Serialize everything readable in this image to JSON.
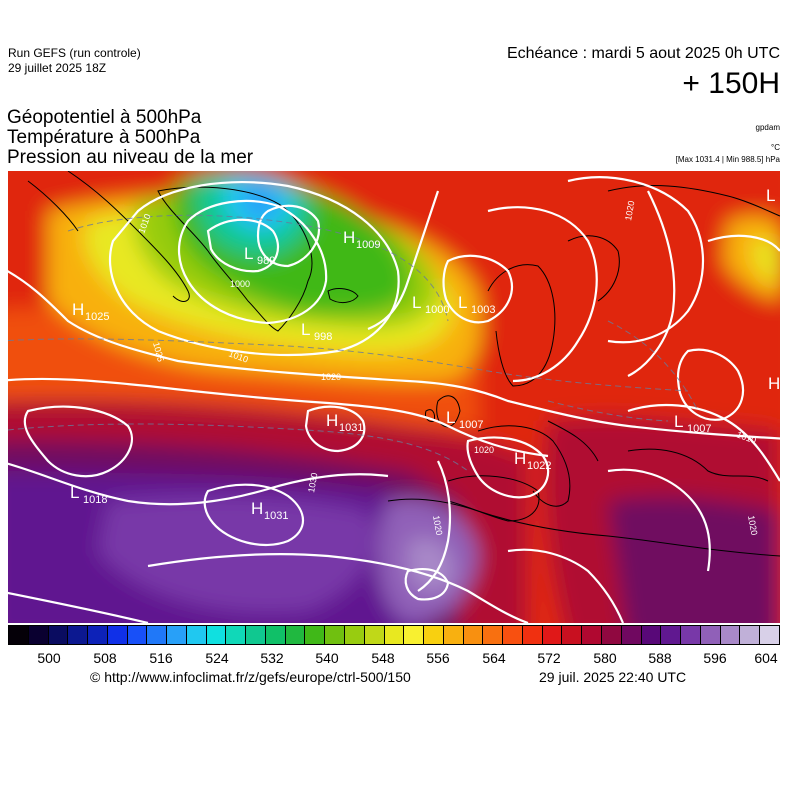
{
  "header": {
    "run_title": "Run GEFS (run controle)",
    "run_date": "29 juillet 2025 18Z",
    "echeance": "Echéance : mardi 5 aout 2025 0h UTC",
    "horizon": "+ 150H"
  },
  "parameters": {
    "line1": "Géopotentiel à 500hPa",
    "line2": "Température à 500hPa",
    "line3": "Pression au niveau de la mer",
    "unit_geopotential": "gpdam",
    "unit_temperature": "°C",
    "pressure_range": "[Max 1031.4 | Min 988.5] hPa"
  },
  "pressure_centers": [
    {
      "type": "H",
      "value": "1025"
    },
    {
      "type": "L",
      "value": "989"
    },
    {
      "type": "H",
      "value": "1009"
    },
    {
      "type": "L",
      "value": "1000"
    },
    {
      "type": "L",
      "value": "1003"
    },
    {
      "type": "L",
      "value": "998"
    },
    {
      "type": "H",
      "value": "1031"
    },
    {
      "type": "L",
      "value": "1007"
    },
    {
      "type": "H",
      "value": "1022"
    },
    {
      "type": "L",
      "value": "1007"
    },
    {
      "type": "L",
      "value": "1018"
    },
    {
      "type": "H",
      "value": "1031"
    },
    {
      "type": "L",
      "value": ""
    },
    {
      "type": "H",
      "value": ""
    }
  ],
  "isobar_labels": [
    "1010",
    "1000",
    "1020",
    "1025",
    "1010",
    "1020",
    "1020",
    "1030",
    "1020",
    "1010",
    "1020"
  ],
  "colorbar": {
    "colors": [
      "#050008",
      "#0a0030",
      "#0a0c60",
      "#0c1890",
      "#0d22b8",
      "#1030e8",
      "#1850f8",
      "#2078f8",
      "#28a0f8",
      "#20c8f0",
      "#10e0e0",
      "#10d8b8",
      "#10c890",
      "#10c068",
      "#20b840",
      "#40b818",
      "#70c010",
      "#98cc10",
      "#c0d818",
      "#e8e820",
      "#f8f030",
      "#f8d010",
      "#f8b010",
      "#f89010",
      "#f87010",
      "#f85010",
      "#f03010",
      "#e01818",
      "#c81020",
      "#b00830",
      "#900840",
      "#700860",
      "#580878",
      "#601890",
      "#7838a8",
      "#9060b8",
      "#a888c8",
      "#c0b0d8",
      "#d8d0e8"
    ],
    "ticks": [
      "500",
      "508",
      "516",
      "524",
      "532",
      "540",
      "548",
      "556",
      "564",
      "572",
      "580",
      "588",
      "596",
      "604"
    ]
  },
  "footer": {
    "credit": "© http://www.infoclimat.fr/z/gefs/europe/ctrl-500/150",
    "timestamp": "29 juil. 2025 22:40 UTC"
  }
}
